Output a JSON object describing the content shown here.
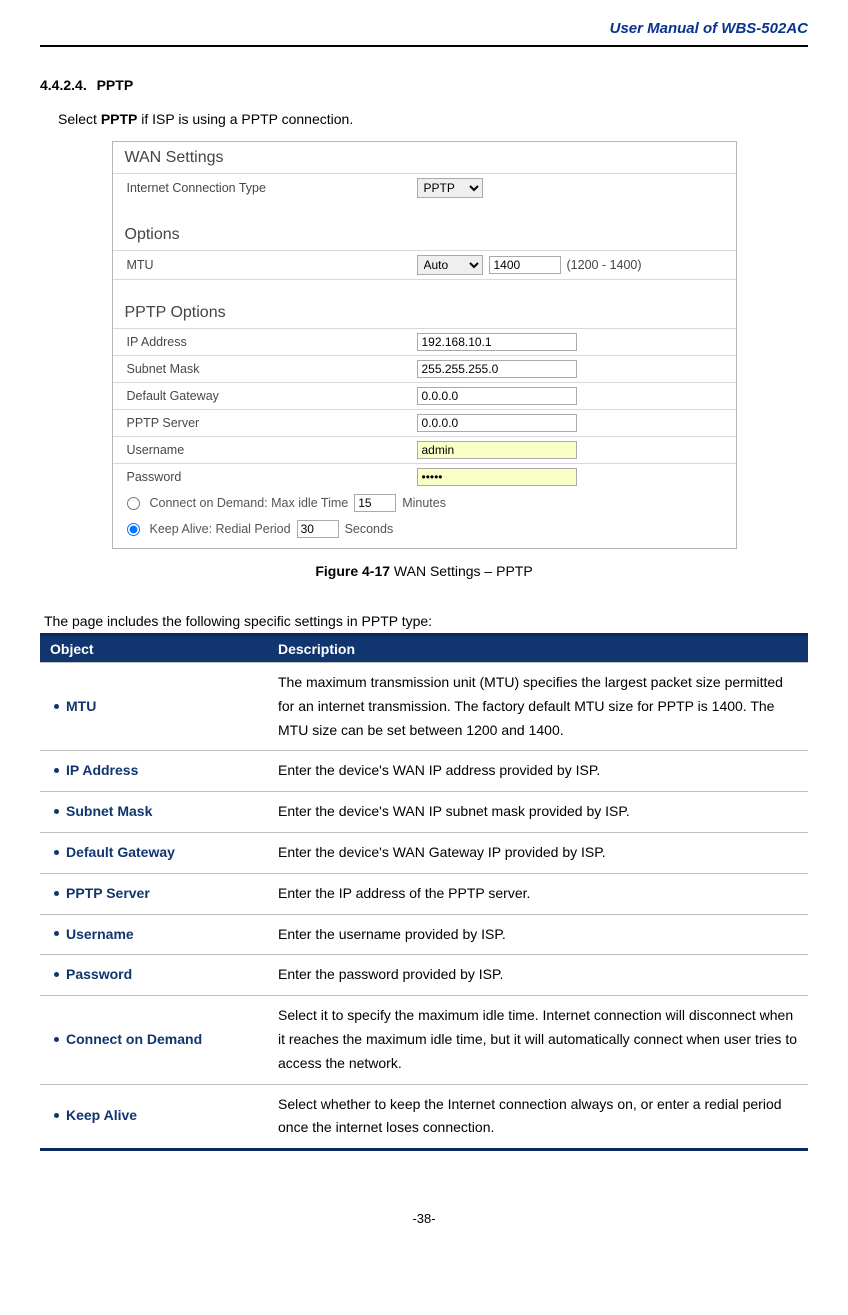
{
  "header": {
    "manual_title": "User  Manual  of  WBS-502AC"
  },
  "section": {
    "number": "4.4.2.4.",
    "title": "PPTP"
  },
  "intro": {
    "pre": "Select ",
    "bold": "PPTP",
    "post": " if ISP is using a PPTP connection."
  },
  "screenshot": {
    "title": "WAN Settings",
    "conn_type_label": "Internet Connection Type",
    "conn_type_value": "PPTP",
    "options_heading": "Options",
    "mtu_label": "MTU",
    "mtu_mode": "Auto",
    "mtu_value": "1400",
    "mtu_range": "(1200 - 1400)",
    "pptp_heading": "PPTP Options",
    "ip_label": "IP Address",
    "ip_value": "192.168.10.1",
    "mask_label": "Subnet Mask",
    "mask_value": "255.255.255.0",
    "gw_label": "Default Gateway",
    "gw_value": "0.0.0.0",
    "srv_label": "PPTP Server",
    "srv_value": "0.0.0.0",
    "user_label": "Username",
    "user_value": "admin",
    "pass_label": "Password",
    "pass_value": "•••••",
    "cod_label": "Connect on Demand:  Max idle Time",
    "cod_value": "15",
    "cod_unit": "Minutes",
    "ka_label": "Keep Alive:  Redial Period",
    "ka_value": "30",
    "ka_unit": "Seconds"
  },
  "figure": {
    "bold": "Figure 4-17",
    "rest": " WAN Settings – PPTP"
  },
  "table_intro": "The page includes the following specific settings in PPTP type:",
  "table": {
    "head_object": "Object",
    "head_desc": "Description",
    "rows": [
      {
        "obj": "MTU",
        "desc": "The maximum transmission unit (MTU) specifies the largest packet size permitted for an internet transmission. The factory default MTU size for PPTP is 1400. The MTU size can be set between 1200 and 1400."
      },
      {
        "obj": "IP Address",
        "desc": "Enter the device's WAN IP address provided by ISP."
      },
      {
        "obj": "Subnet Mask",
        "desc": "Enter the device's WAN IP subnet mask provided by ISP."
      },
      {
        "obj": "Default Gateway",
        "desc": "Enter the device's WAN Gateway IP provided by ISP."
      },
      {
        "obj": "PPTP Server",
        "desc": "Enter the IP address of the PPTP server."
      },
      {
        "obj": "Username",
        "desc": "Enter the username provided by ISP."
      },
      {
        "obj": "Password",
        "desc": "Enter the password provided by ISP."
      },
      {
        "obj": "Connect on Demand",
        "desc": "Select it to specify the maximum idle time. Internet connection will disconnect when it reaches the maximum idle time, but it will automatically connect when user tries to access the network."
      },
      {
        "obj": "Keep Alive",
        "desc": "Select whether to keep the Internet connection always on, or enter a redial period once the internet loses connection."
      }
    ]
  },
  "footer": {
    "page_num": "-38-"
  }
}
